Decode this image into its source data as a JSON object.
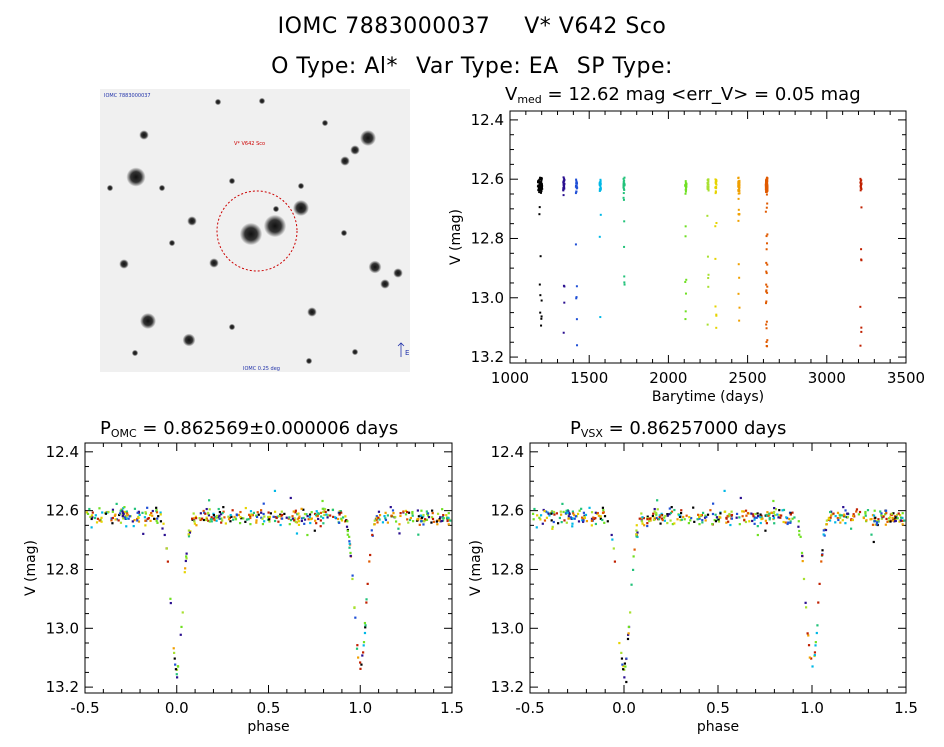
{
  "header": {
    "id": "IOMC 7883000037",
    "star": "V* V642 Sco",
    "otype": "O Type: Al*",
    "vartype": "Var Type: EA",
    "sptype": "SP Type:"
  },
  "thumbnail": {
    "top_left_label": "IOMC 7883000037",
    "target_label": "V* V642 Sco",
    "bottom_label": "IOMC 0.25 deg",
    "right_label": "E"
  },
  "colors": {
    "aperture_circle": "#cc0000",
    "thumb_text": "#2233aa",
    "series": [
      "#000000",
      "#2a0f8f",
      "#1f4fd6",
      "#00b8e6",
      "#22c27a",
      "#6fe022",
      "#a8e030",
      "#e6d400",
      "#f0a000",
      "#e05a00",
      "#c02000"
    ]
  },
  "chart_data": [
    {
      "id": "lightcurve",
      "type": "scatter",
      "title_main": "V",
      "title_sub": "med",
      "title_rest": " = 12.62 mag <err_V> = 0.05 mag",
      "xlabel": "Barytime (days)",
      "ylabel": "V (mag)",
      "xlim": [
        1000,
        3500
      ],
      "ylim": [
        13.22,
        12.37
      ],
      "xticks": [
        "1000",
        "1500",
        "2000",
        "2500",
        "3000",
        "3500"
      ],
      "yticks": [
        "12.4",
        "12.6",
        "12.8",
        "13.0",
        "13.2"
      ],
      "season_centers": [
        1190,
        1340,
        1420,
        1570,
        1720,
        2110,
        2250,
        2300,
        2445,
        2620,
        3215
      ],
      "baseline_mag": 12.62,
      "primary_minimum_mag": 13.17
    },
    {
      "id": "phase-omc",
      "type": "scatter",
      "title_main": "P",
      "title_sub": "OMC",
      "title_rest": " = 0.862569±0.000006 days",
      "xlabel": "phase",
      "ylabel": "V (mag)",
      "xlim": [
        -0.5,
        1.5
      ],
      "ylim": [
        13.22,
        12.37
      ],
      "xticks": [
        "-0.5",
        "0.0",
        "0.5",
        "1.0",
        "1.5"
      ],
      "yticks": [
        "12.4",
        "12.6",
        "12.8",
        "13.0",
        "13.2"
      ],
      "period_days": 0.862569,
      "eclipse_phase": 0.0,
      "eclipse_depth_mag": 0.52
    },
    {
      "id": "phase-vsx",
      "type": "scatter",
      "title_main": "P",
      "title_sub": "VSX",
      "title_rest": " = 0.86257000 days",
      "xlabel": "phase",
      "ylabel": "V (mag)",
      "xlim": [
        -0.5,
        1.5
      ],
      "ylim": [
        13.22,
        12.37
      ],
      "xticks": [
        "-0.5",
        "0.0",
        "0.5",
        "1.0",
        "1.5"
      ],
      "yticks": [
        "12.4",
        "12.6",
        "12.8",
        "13.0",
        "13.2"
      ],
      "period_days": 0.86257,
      "eclipse_phase": 0.0,
      "eclipse_depth_mag": 0.52
    }
  ]
}
